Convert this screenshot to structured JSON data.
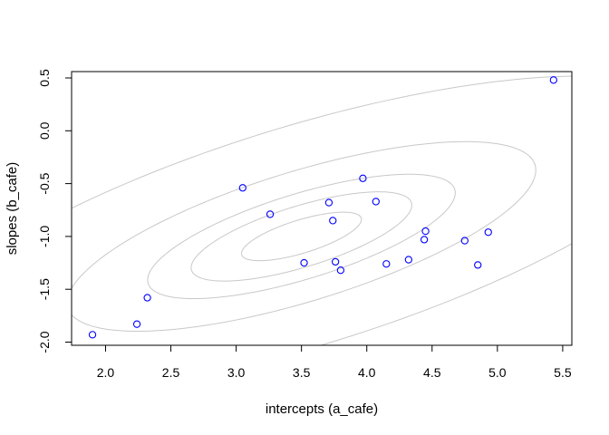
{
  "chart_data": {
    "type": "scatter",
    "title": "",
    "xlabel": "intercepts (a_cafe)",
    "ylabel": "slopes (b_cafe)",
    "xlim": [
      1.74,
      5.57
    ],
    "ylim": [
      -2.03,
      0.56
    ],
    "x_ticks": [
      2.0,
      2.5,
      3.0,
      3.5,
      4.0,
      4.5,
      5.0,
      5.5
    ],
    "x_tick_labels": [
      "2.0",
      "2.5",
      "3.0",
      "3.5",
      "4.0",
      "4.5",
      "5.0",
      "5.5"
    ],
    "y_ticks": [
      -2.0,
      -1.5,
      -1.0,
      -0.5,
      0.0,
      0.5
    ],
    "y_tick_labels": [
      "-2.0",
      "-1.5",
      "-1.0",
      "-0.5",
      "0.0",
      "0.5"
    ],
    "grid": false,
    "point_color": "#0000ff",
    "contour_color": "#c8c8c8",
    "points": [
      {
        "x": 1.9,
        "y": -1.93
      },
      {
        "x": 2.24,
        "y": -1.83
      },
      {
        "x": 2.32,
        "y": -1.58
      },
      {
        "x": 3.05,
        "y": -0.54
      },
      {
        "x": 3.26,
        "y": -0.79
      },
      {
        "x": 3.52,
        "y": -1.25
      },
      {
        "x": 3.71,
        "y": -0.68
      },
      {
        "x": 3.74,
        "y": -0.85
      },
      {
        "x": 3.76,
        "y": -1.24
      },
      {
        "x": 3.8,
        "y": -1.32
      },
      {
        "x": 3.97,
        "y": -0.45
      },
      {
        "x": 4.07,
        "y": -0.67
      },
      {
        "x": 4.15,
        "y": -1.26
      },
      {
        "x": 4.32,
        "y": -1.22
      },
      {
        "x": 4.44,
        "y": -1.03
      },
      {
        "x": 4.45,
        "y": -0.95
      },
      {
        "x": 4.75,
        "y": -1.04
      },
      {
        "x": 4.85,
        "y": -1.27
      },
      {
        "x": 4.93,
        "y": -0.96
      },
      {
        "x": 5.43,
        "y": 0.48
      }
    ],
    "contours": {
      "center": [
        3.5,
        -1.0
      ],
      "sd": [
        1.0,
        0.5
      ],
      "rho": 0.7,
      "levels": [
        0.1,
        0.3,
        0.5,
        0.8,
        0.99
      ]
    }
  }
}
